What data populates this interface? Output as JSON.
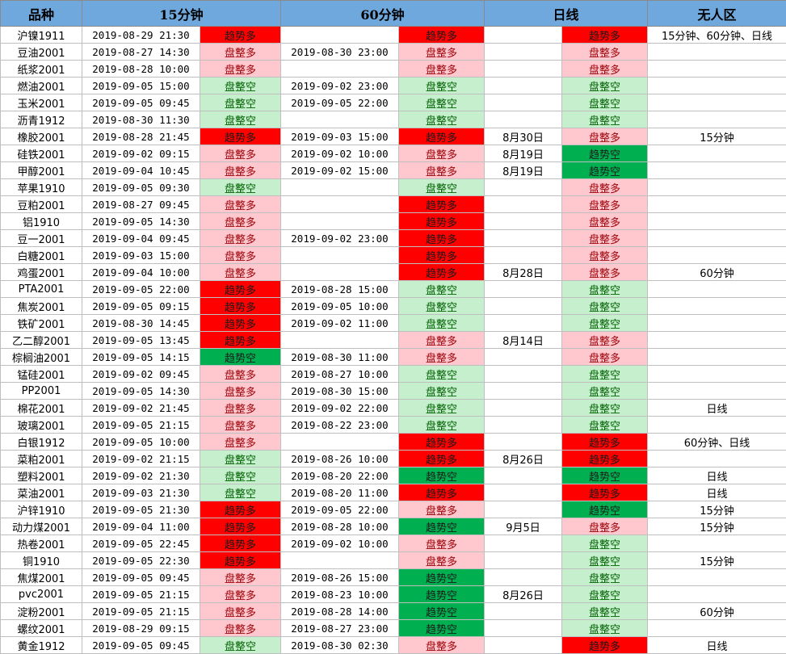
{
  "header": {
    "name": "品种",
    "m15": "15分钟",
    "m60": "60分钟",
    "daily": "日线",
    "nozone": "无人区"
  },
  "legend_colors": {
    "趋势多": "#ff0000",
    "趋势空": "#00b050",
    "盘整多": "#ffc7ce",
    "盘整空": "#c6efce"
  },
  "rows": [
    {
      "name": "沪镍1911",
      "t15": "2019-08-29 21:30",
      "s15": "趋势多",
      "t60": "",
      "s60": "趋势多",
      "td": "",
      "sd": "趋势多",
      "nz": "15分钟、60分钟、日线"
    },
    {
      "name": "豆油2001",
      "t15": "2019-08-27 14:30",
      "s15": "盘整多",
      "t60": "2019-08-30 23:00",
      "s60": "盘整多",
      "td": "",
      "sd": "盘整多",
      "nz": ""
    },
    {
      "name": "纸浆2001",
      "t15": "2019-08-28 10:00",
      "s15": "盘整多",
      "t60": "",
      "s60": "盘整多",
      "td": "",
      "sd": "盘整多",
      "nz": ""
    },
    {
      "name": "燃油2001",
      "t15": "2019-09-05 15:00",
      "s15": "盘整空",
      "t60": "2019-09-02 23:00",
      "s60": "盘整空",
      "td": "",
      "sd": "盘整空",
      "nz": ""
    },
    {
      "name": "玉米2001",
      "t15": "2019-09-05 09:45",
      "s15": "盘整空",
      "t60": "2019-09-05 22:00",
      "s60": "盘整空",
      "td": "",
      "sd": "盘整空",
      "nz": ""
    },
    {
      "name": "沥青1912",
      "t15": "2019-08-30 11:30",
      "s15": "盘整空",
      "t60": "",
      "s60": "盘整空",
      "td": "",
      "sd": "盘整空",
      "nz": ""
    },
    {
      "name": "橡胶2001",
      "t15": "2019-08-28 21:45",
      "s15": "趋势多",
      "t60": "2019-09-03 15:00",
      "s60": "趋势多",
      "td": "8月30日",
      "sd": "盘整多",
      "nz": "15分钟"
    },
    {
      "name": "硅铁2001",
      "t15": "2019-09-02 09:15",
      "s15": "盘整多",
      "t60": "2019-09-02 10:00",
      "s60": "盘整多",
      "td": "8月19日",
      "sd": "趋势空",
      "nz": ""
    },
    {
      "name": "甲醇2001",
      "t15": "2019-09-04 10:45",
      "s15": "盘整多",
      "t60": "2019-09-02 15:00",
      "s60": "盘整多",
      "td": "8月19日",
      "sd": "趋势空",
      "nz": ""
    },
    {
      "name": "苹果1910",
      "t15": "2019-09-05 09:30",
      "s15": "盘整空",
      "t60": "",
      "s60": "盘整空",
      "td": "",
      "sd": "盘整多",
      "nz": ""
    },
    {
      "name": "豆粕2001",
      "t15": "2019-08-27 09:45",
      "s15": "盘整多",
      "t60": "",
      "s60": "趋势多",
      "td": "",
      "sd": "盘整多",
      "nz": ""
    },
    {
      "name": "铝1910",
      "t15": "2019-09-05 14:30",
      "s15": "盘整多",
      "t60": "",
      "s60": "趋势多",
      "td": "",
      "sd": "盘整多",
      "nz": ""
    },
    {
      "name": "豆一2001",
      "t15": "2019-09-04 09:45",
      "s15": "盘整多",
      "t60": "2019-09-02 23:00",
      "s60": "趋势多",
      "td": "",
      "sd": "盘整多",
      "nz": ""
    },
    {
      "name": "白糖2001",
      "t15": "2019-09-03 15:00",
      "s15": "盘整多",
      "t60": "",
      "s60": "趋势多",
      "td": "",
      "sd": "盘整多",
      "nz": ""
    },
    {
      "name": "鸡蛋2001",
      "t15": "2019-09-04 10:00",
      "s15": "盘整多",
      "t60": "",
      "s60": "趋势多",
      "td": "8月28日",
      "sd": "盘整多",
      "nz": "60分钟"
    },
    {
      "name": "PTA2001",
      "t15": "2019-09-05 22:00",
      "s15": "趋势多",
      "t60": "2019-08-28 15:00",
      "s60": "盘整空",
      "td": "",
      "sd": "盘整空",
      "nz": ""
    },
    {
      "name": "焦炭2001",
      "t15": "2019-09-05 09:15",
      "s15": "趋势多",
      "t60": "2019-09-05 10:00",
      "s60": "盘整空",
      "td": "",
      "sd": "盘整空",
      "nz": ""
    },
    {
      "name": "铁矿2001",
      "t15": "2019-08-30 14:45",
      "s15": "趋势多",
      "t60": "2019-09-02 11:00",
      "s60": "盘整空",
      "td": "",
      "sd": "盘整空",
      "nz": ""
    },
    {
      "name": "乙二醇2001",
      "t15": "2019-09-05 13:45",
      "s15": "趋势多",
      "t60": "",
      "s60": "盘整多",
      "td": "8月14日",
      "sd": "盘整多",
      "nz": ""
    },
    {
      "name": "棕榈油2001",
      "t15": "2019-09-05 14:15",
      "s15": "趋势空",
      "t60": "2019-08-30 11:00",
      "s60": "盘整多",
      "td": "",
      "sd": "盘整多",
      "nz": ""
    },
    {
      "name": "锰硅2001",
      "t15": "2019-09-02 09:45",
      "s15": "盘整多",
      "t60": "2019-08-27 10:00",
      "s60": "盘整空",
      "td": "",
      "sd": "盘整空",
      "nz": ""
    },
    {
      "name": "PP2001",
      "t15": "2019-09-05 14:30",
      "s15": "盘整多",
      "t60": "2019-08-30 15:00",
      "s60": "盘整空",
      "td": "",
      "sd": "盘整空",
      "nz": ""
    },
    {
      "name": "棉花2001",
      "t15": "2019-09-02 21:45",
      "s15": "盘整多",
      "t60": "2019-09-02 22:00",
      "s60": "盘整空",
      "td": "",
      "sd": "盘整空",
      "nz": "日线"
    },
    {
      "name": "玻璃2001",
      "t15": "2019-09-05 21:15",
      "s15": "盘整多",
      "t60": "2019-08-22 23:00",
      "s60": "盘整空",
      "td": "",
      "sd": "盘整空",
      "nz": ""
    },
    {
      "name": "白银1912",
      "t15": "2019-09-05 10:00",
      "s15": "盘整多",
      "t60": "",
      "s60": "趋势多",
      "td": "",
      "sd": "趋势多",
      "nz": "60分钟、日线"
    },
    {
      "name": "菜粕2001",
      "t15": "2019-09-02 21:15",
      "s15": "盘整空",
      "t60": "2019-08-26 10:00",
      "s60": "趋势多",
      "td": "8月26日",
      "sd": "趋势多",
      "nz": ""
    },
    {
      "name": "塑料2001",
      "t15": "2019-09-02 21:30",
      "s15": "盘整空",
      "t60": "2019-08-20 22:00",
      "s60": "趋势空",
      "td": "",
      "sd": "趋势空",
      "nz": "日线"
    },
    {
      "name": "菜油2001",
      "t15": "2019-09-03 21:30",
      "s15": "盘整空",
      "t60": "2019-08-20 11:00",
      "s60": "趋势多",
      "td": "",
      "sd": "趋势多",
      "nz": "日线"
    },
    {
      "name": "沪锌1910",
      "t15": "2019-09-05 21:30",
      "s15": "趋势多",
      "t60": "2019-09-05 22:00",
      "s60": "盘整多",
      "td": "",
      "sd": "趋势空",
      "nz": "15分钟"
    },
    {
      "name": "动力煤2001",
      "t15": "2019-09-04 11:00",
      "s15": "趋势多",
      "t60": "2019-08-28 10:00",
      "s60": "趋势空",
      "td": "9月5日",
      "sd": "盘整多",
      "nz": "15分钟"
    },
    {
      "name": "热卷2001",
      "t15": "2019-09-05 22:45",
      "s15": "趋势多",
      "t60": "2019-09-02 10:00",
      "s60": "盘整多",
      "td": "",
      "sd": "盘整空",
      "nz": ""
    },
    {
      "name": "铜1910",
      "t15": "2019-09-05 22:30",
      "s15": "趋势多",
      "t60": "",
      "s60": "盘整多",
      "td": "",
      "sd": "盘整空",
      "nz": "15分钟"
    },
    {
      "name": "焦煤2001",
      "t15": "2019-09-05 09:45",
      "s15": "盘整多",
      "t60": "2019-08-26 15:00",
      "s60": "趋势空",
      "td": "",
      "sd": "盘整空",
      "nz": ""
    },
    {
      "name": "pvc2001",
      "t15": "2019-09-05 21:15",
      "s15": "盘整多",
      "t60": "2019-08-23 10:00",
      "s60": "趋势空",
      "td": "8月26日",
      "sd": "盘整空",
      "nz": ""
    },
    {
      "name": "淀粉2001",
      "t15": "2019-09-05 21:15",
      "s15": "盘整多",
      "t60": "2019-08-28 14:00",
      "s60": "趋势空",
      "td": "",
      "sd": "盘整空",
      "nz": "60分钟"
    },
    {
      "name": "螺纹2001",
      "t15": "2019-08-29 09:15",
      "s15": "盘整多",
      "t60": "2019-08-27 23:00",
      "s60": "趋势空",
      "td": "",
      "sd": "盘整空",
      "nz": ""
    },
    {
      "name": "黄金1912",
      "t15": "2019-09-05 09:45",
      "s15": "盘整空",
      "t60": "2019-08-30 02:30",
      "s60": "盘整多",
      "td": "",
      "sd": "趋势多",
      "nz": "日线"
    }
  ]
}
